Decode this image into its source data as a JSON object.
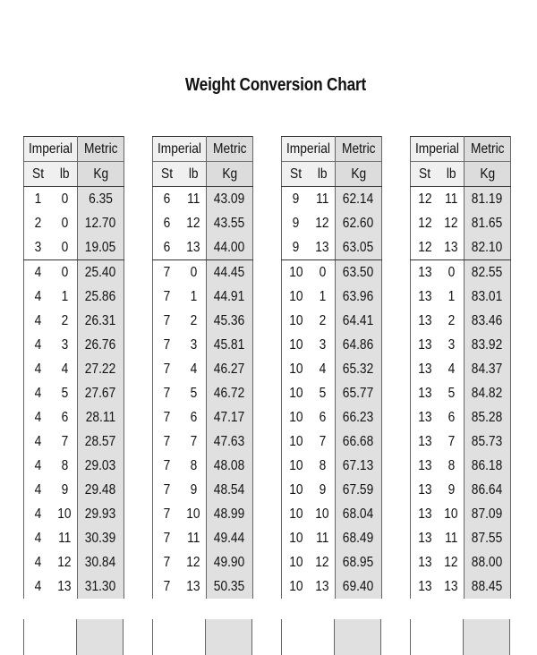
{
  "title": "Weight Conversion Chart",
  "header": {
    "imperial": "Imperial",
    "metric": "Metric",
    "st": "St",
    "lb": "lb",
    "kg": "Kg"
  },
  "tables": [
    {
      "rows": [
        [
          "1",
          "0",
          "6.35"
        ],
        [
          "2",
          "0",
          "12.70"
        ],
        [
          "3",
          "0",
          "19.05"
        ],
        [
          "4",
          "0",
          "25.40"
        ],
        [
          "4",
          "1",
          "25.86"
        ],
        [
          "4",
          "2",
          "26.31"
        ],
        [
          "4",
          "3",
          "26.76"
        ],
        [
          "4",
          "4",
          "27.22"
        ],
        [
          "4",
          "5",
          "27.67"
        ],
        [
          "4",
          "6",
          "28.11"
        ],
        [
          "4",
          "7",
          "28.57"
        ],
        [
          "4",
          "8",
          "29.03"
        ],
        [
          "4",
          "9",
          "29.48"
        ],
        [
          "4",
          "10",
          "29.93"
        ],
        [
          "4",
          "11",
          "30.39"
        ],
        [
          "4",
          "12",
          "30.84"
        ],
        [
          "4",
          "13",
          "31.30"
        ]
      ]
    },
    {
      "rows": [
        [
          "6",
          "11",
          "43.09"
        ],
        [
          "6",
          "12",
          "43.55"
        ],
        [
          "6",
          "13",
          "44.00"
        ],
        [
          "7",
          "0",
          "44.45"
        ],
        [
          "7",
          "1",
          "44.91"
        ],
        [
          "7",
          "2",
          "45.36"
        ],
        [
          "7",
          "3",
          "45.81"
        ],
        [
          "7",
          "4",
          "46.27"
        ],
        [
          "7",
          "5",
          "46.72"
        ],
        [
          "7",
          "6",
          "47.17"
        ],
        [
          "7",
          "7",
          "47.63"
        ],
        [
          "7",
          "8",
          "48.08"
        ],
        [
          "7",
          "9",
          "48.54"
        ],
        [
          "7",
          "10",
          "48.99"
        ],
        [
          "7",
          "11",
          "49.44"
        ],
        [
          "7",
          "12",
          "49.90"
        ],
        [
          "7",
          "13",
          "50.35"
        ]
      ]
    },
    {
      "rows": [
        [
          "9",
          "11",
          "62.14"
        ],
        [
          "9",
          "12",
          "62.60"
        ],
        [
          "9",
          "13",
          "63.05"
        ],
        [
          "10",
          "0",
          "63.50"
        ],
        [
          "10",
          "1",
          "63.96"
        ],
        [
          "10",
          "2",
          "64.41"
        ],
        [
          "10",
          "3",
          "64.86"
        ],
        [
          "10",
          "4",
          "65.32"
        ],
        [
          "10",
          "5",
          "65.77"
        ],
        [
          "10",
          "6",
          "66.23"
        ],
        [
          "10",
          "7",
          "66.68"
        ],
        [
          "10",
          "8",
          "67.13"
        ],
        [
          "10",
          "9",
          "67.59"
        ],
        [
          "10",
          "10",
          "68.04"
        ],
        [
          "10",
          "11",
          "68.49"
        ],
        [
          "10",
          "12",
          "68.95"
        ],
        [
          "10",
          "13",
          "69.40"
        ]
      ]
    },
    {
      "rows": [
        [
          "12",
          "11",
          "81.19"
        ],
        [
          "12",
          "12",
          "81.65"
        ],
        [
          "12",
          "13",
          "82.10"
        ],
        [
          "13",
          "0",
          "82.55"
        ],
        [
          "13",
          "1",
          "83.01"
        ],
        [
          "13",
          "2",
          "83.46"
        ],
        [
          "13",
          "3",
          "83.92"
        ],
        [
          "13",
          "4",
          "84.37"
        ],
        [
          "13",
          "5",
          "84.82"
        ],
        [
          "13",
          "6",
          "85.28"
        ],
        [
          "13",
          "7",
          "85.73"
        ],
        [
          "13",
          "8",
          "86.18"
        ],
        [
          "13",
          "9",
          "86.64"
        ],
        [
          "13",
          "10",
          "87.09"
        ],
        [
          "13",
          "11",
          "87.55"
        ],
        [
          "13",
          "12",
          "88.00"
        ],
        [
          "13",
          "13",
          "88.45"
        ]
      ]
    }
  ]
}
